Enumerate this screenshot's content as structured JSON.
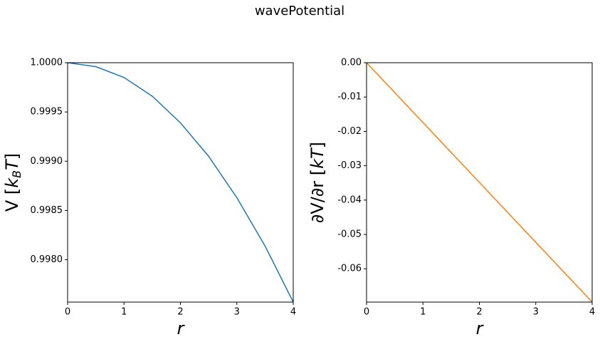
{
  "title": "wavePotential",
  "chart_data": [
    {
      "type": "line",
      "xlabel": "r",
      "ylabel_parts": [
        "V [",
        "k",
        "B",
        "T",
        "]"
      ],
      "x": [
        0,
        0.5,
        1,
        1.5,
        2,
        2.5,
        3,
        3.5,
        4
      ],
      "series": [
        {
          "color": "#1f77b4",
          "values": [
            1.0,
            0.99996,
            0.99985,
            0.99966,
            0.99939,
            0.99905,
            0.99863,
            0.99814,
            0.99757
          ]
        }
      ],
      "xlim": [
        0,
        4
      ],
      "xticks": [
        0,
        1,
        2,
        3,
        4
      ],
      "ylim": [
        0.99757,
        1.0
      ],
      "yticks": [
        {
          "value": 0.998,
          "label": "0.9980"
        },
        {
          "value": 0.9985,
          "label": "0.9985"
        },
        {
          "value": 0.999,
          "label": "0.9990"
        },
        {
          "value": 0.9995,
          "label": "0.9995"
        },
        {
          "value": 1.0,
          "label": "1.0000"
        }
      ]
    },
    {
      "type": "line",
      "xlabel": "r",
      "ylabel_parts": [
        "∂V/∂r [",
        "kT",
        "]"
      ],
      "x": [
        0,
        4
      ],
      "series": [
        {
          "color": "#ff7f0e",
          "values": [
            0,
            -0.0697
          ]
        }
      ],
      "xlim": [
        0,
        4
      ],
      "xticks": [
        0,
        1,
        2,
        3,
        4
      ],
      "ylim": [
        -0.0697,
        0
      ],
      "yticks": [
        -0.06,
        -0.05,
        -0.04,
        -0.03,
        -0.02,
        -0.01,
        {
          "value": 0,
          "label": "0.00"
        }
      ]
    }
  ]
}
